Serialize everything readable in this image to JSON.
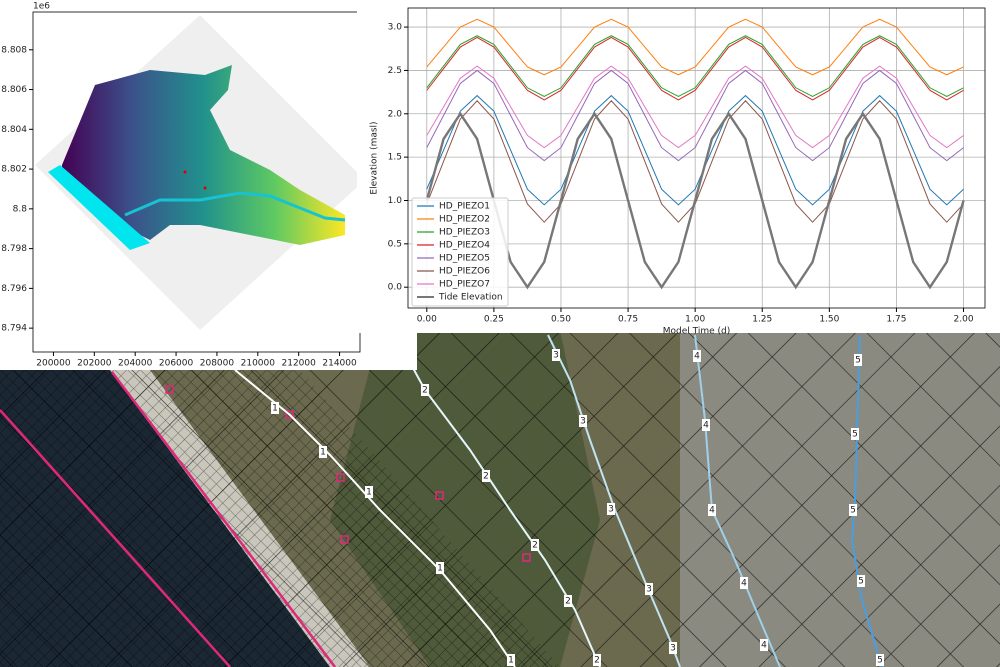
{
  "chart_data": [
    {
      "type": "image",
      "offset_label": "1e6",
      "xlim": [
        199000,
        215000
      ],
      "xticks": [
        200000,
        202000,
        204000,
        206000,
        208000,
        210000,
        212000,
        214000
      ],
      "ylim": [
        8.7928,
        8.8099
      ],
      "yticks": [
        8.794,
        8.796,
        8.798,
        8.8,
        8.802,
        8.804,
        8.806,
        8.808
      ],
      "grid": false
    },
    {
      "type": "line",
      "xlabel": "Model Time (d)",
      "ylabel": "Elevation (masl)",
      "grid": true,
      "legend": "lower left",
      "xlim": [
        -0.07,
        2.08
      ],
      "xticks": [
        {
          "value": 0,
          "label": "0.00"
        },
        0.25,
        {
          "value": 0.5,
          "label": "0.50"
        },
        0.75,
        {
          "value": 1,
          "label": "1.00"
        },
        1.25,
        {
          "value": 1.5,
          "label": "1.50"
        },
        1.75,
        {
          "value": 2,
          "label": "2.00"
        }
      ],
      "ylim": [
        -0.24,
        3.22
      ],
      "yticks": [
        {
          "value": 0,
          "label": "0.0"
        },
        0.5,
        {
          "value": 1,
          "label": "1.0"
        },
        1.5,
        {
          "value": 2,
          "label": "2.0"
        },
        2.5,
        {
          "value": 3,
          "label": "3.0"
        }
      ],
      "x": [
        0,
        0.0625,
        0.125,
        0.1875,
        0.25,
        0.3125,
        0.375,
        0.4375,
        0.5,
        0.5625,
        0.625,
        0.6875,
        0.75,
        0.8125,
        0.875,
        0.9375,
        1,
        1.0625,
        1.125,
        1.1875,
        1.25,
        1.3125,
        1.375,
        1.4375,
        1.5,
        1.5625,
        1.625,
        1.6875,
        1.75,
        1.8125,
        1.875,
        1.9375,
        2
      ],
      "series": [
        {
          "name": "HD_PIEZO1",
          "color": "#1f77b4",
          "values": [
            1.13,
            1.58,
            2.03,
            2.21,
            2.03,
            1.58,
            1.13,
            0.95,
            1.13,
            1.58,
            2.03,
            2.21,
            2.03,
            1.58,
            1.13,
            0.95,
            1.13,
            1.58,
            2.03,
            2.21,
            2.03,
            1.58,
            1.13,
            0.95,
            1.13,
            1.58,
            2.03,
            2.21,
            2.03,
            1.58,
            1.13,
            0.95,
            1.13
          ]
        },
        {
          "name": "HD_PIEZO2",
          "color": "#ff7f0e",
          "values": [
            2.54,
            2.77,
            3.0,
            3.09,
            3.0,
            2.77,
            2.54,
            2.45,
            2.54,
            2.77,
            3.0,
            3.09,
            3.0,
            2.77,
            2.54,
            2.45,
            2.54,
            2.77,
            3.0,
            3.09,
            3.0,
            2.77,
            2.54,
            2.45,
            2.54,
            2.77,
            3.0,
            3.09,
            3.0,
            2.77,
            2.54,
            2.45,
            2.54
          ]
        },
        {
          "name": "HD_PIEZO3",
          "color": "#2ca02c",
          "values": [
            2.3,
            2.55,
            2.8,
            2.9,
            2.8,
            2.55,
            2.3,
            2.2,
            2.3,
            2.55,
            2.8,
            2.9,
            2.8,
            2.55,
            2.3,
            2.2,
            2.3,
            2.55,
            2.8,
            2.9,
            2.8,
            2.55,
            2.3,
            2.2,
            2.3,
            2.55,
            2.8,
            2.9,
            2.8,
            2.55,
            2.3,
            2.2,
            2.3
          ]
        },
        {
          "name": "HD_PIEZO4",
          "color": "#d62728",
          "values": [
            2.27,
            2.52,
            2.77,
            2.88,
            2.77,
            2.52,
            2.27,
            2.16,
            2.27,
            2.52,
            2.77,
            2.88,
            2.77,
            2.52,
            2.27,
            2.16,
            2.27,
            2.52,
            2.77,
            2.88,
            2.77,
            2.52,
            2.27,
            2.16,
            2.27,
            2.52,
            2.77,
            2.88,
            2.77,
            2.52,
            2.27,
            2.16,
            2.27
          ]
        },
        {
          "name": "HD_PIEZO5",
          "color": "#9467bd",
          "values": [
            1.61,
            1.98,
            2.35,
            2.5,
            2.35,
            1.98,
            1.61,
            1.46,
            1.61,
            1.98,
            2.35,
            2.5,
            2.35,
            1.98,
            1.61,
            1.46,
            1.61,
            1.98,
            2.35,
            2.5,
            2.35,
            1.98,
            1.61,
            1.46,
            1.61,
            1.98,
            2.35,
            2.5,
            2.35,
            1.98,
            1.61,
            1.46,
            1.61
          ]
        },
        {
          "name": "HD_PIEZO6",
          "color": "#8c564b",
          "values": [
            0.96,
            1.45,
            1.94,
            2.15,
            1.94,
            1.45,
            0.96,
            0.75,
            0.96,
            1.45,
            1.94,
            2.15,
            1.94,
            1.45,
            0.96,
            0.75,
            0.96,
            1.45,
            1.94,
            2.15,
            1.94,
            1.45,
            0.96,
            0.75,
            0.96,
            1.45,
            1.94,
            2.15,
            1.94,
            1.45,
            0.96,
            0.75,
            0.96
          ]
        },
        {
          "name": "HD_PIEZO7",
          "color": "#e377c2",
          "values": [
            1.75,
            2.08,
            2.41,
            2.55,
            2.41,
            2.08,
            1.75,
            1.61,
            1.75,
            2.08,
            2.41,
            2.55,
            2.41,
            2.08,
            1.75,
            1.61,
            1.75,
            2.08,
            2.41,
            2.55,
            2.41,
            2.08,
            1.75,
            1.61,
            1.75,
            2.08,
            2.41,
            2.55,
            2.41,
            2.08,
            1.75,
            1.61,
            1.75
          ]
        },
        {
          "name": "Tide Elevation",
          "color": "#777777",
          "values": [
            1,
            1.71,
            2,
            1.71,
            1,
            0.29,
            0,
            0.29,
            1,
            1.71,
            2,
            1.71,
            1,
            0.29,
            0,
            0.29,
            1,
            1.71,
            2,
            1.71,
            1,
            0.29,
            0,
            0.29,
            1,
            1.71,
            2,
            1.71,
            1,
            0.29,
            0,
            0.29,
            1
          ]
        }
      ]
    }
  ],
  "map": {
    "contours": [
      {
        "label": "1"
      },
      {
        "label": "2"
      },
      {
        "label": "3"
      },
      {
        "label": "4"
      },
      {
        "label": "5"
      }
    ]
  }
}
